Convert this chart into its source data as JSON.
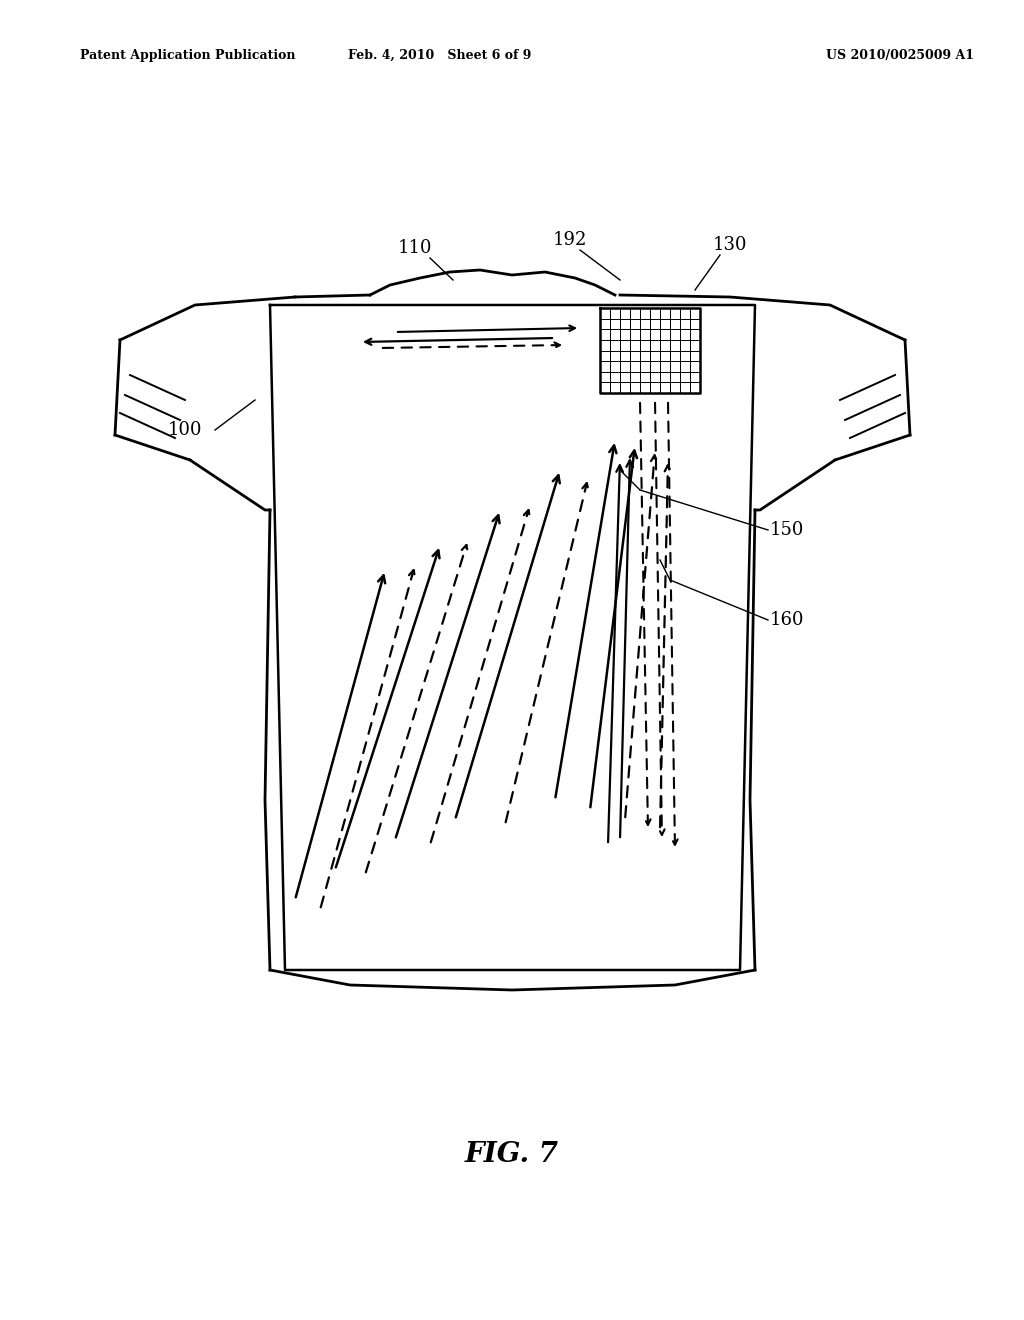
{
  "bg_color": "#ffffff",
  "line_color": "#000000",
  "header_left": "Patent Application Publication",
  "header_mid": "Feb. 4, 2010   Sheet 6 of 9",
  "header_right": "US 2010/0025009 A1",
  "fig_label": "FIG. 7"
}
